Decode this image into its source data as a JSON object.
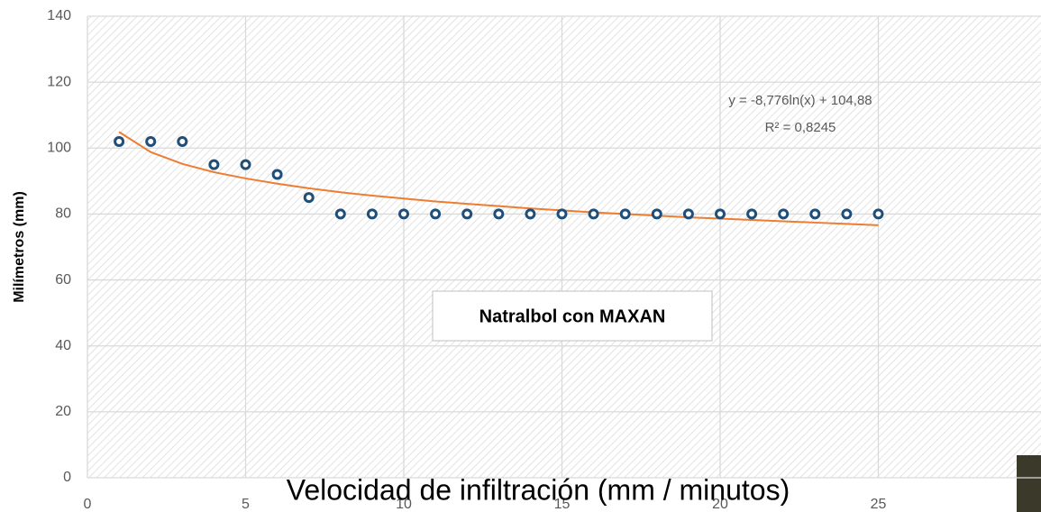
{
  "chart_data": {
    "type": "scatter",
    "xlabel": "Velocidad de infiltración (mm / minutos)",
    "ylabel": "Milímetros (mm)",
    "annotation": "Natralbol con MAXAN",
    "x": [
      1,
      2,
      3,
      4,
      5,
      6,
      7,
      8,
      9,
      10,
      11,
      12,
      13,
      14,
      15,
      16,
      17,
      18,
      19,
      20,
      21,
      22,
      23,
      24,
      25
    ],
    "values": [
      102,
      102,
      102,
      95,
      95,
      92,
      85,
      80,
      80,
      80,
      80,
      80,
      80,
      80,
      80,
      80,
      80,
      80,
      80,
      80,
      80,
      80,
      80,
      80,
      80
    ],
    "color": "#1f4e79",
    "trendline": {
      "equation": "y = -8,776ln(x) + 104,88",
      "r_squared": "R² = 0,8245",
      "color": "#ed7d31",
      "values": [
        104.9,
        98.8,
        95.2,
        92.7,
        90.8,
        89.2,
        87.8,
        86.6,
        85.6,
        84.7,
        83.8,
        83.1,
        82.4,
        81.7,
        81.1,
        80.5,
        80.0,
        79.5,
        79.0,
        78.6,
        78.2,
        77.8,
        77.4,
        77.0,
        76.6
      ]
    },
    "xlim": [
      0,
      30
    ],
    "ylim": [
      0,
      140
    ],
    "xticks": [
      0,
      5,
      10,
      15,
      20,
      25
    ],
    "yticks": [
      0,
      20,
      40,
      60,
      80,
      100,
      120,
      140
    ],
    "grid": true
  }
}
